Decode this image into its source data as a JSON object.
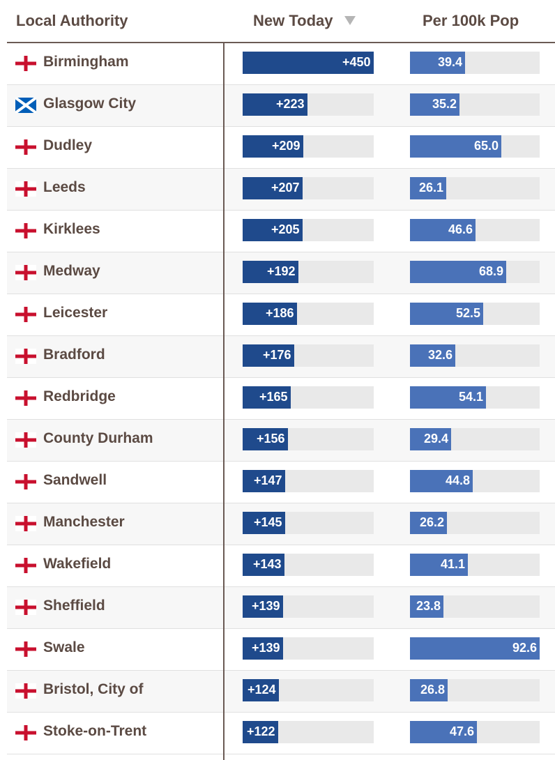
{
  "header": {
    "local_authority": "Local Authority",
    "new_today": "New Today",
    "per_100k": "Per 100k Pop",
    "sort_icon": "sort-descending-triangle"
  },
  "scales": {
    "new_today_max": 450,
    "per_100k_max": 92.6
  },
  "colors": {
    "new_today_bar": "#1f4a8c",
    "per_100k_bar": "#4a72b8",
    "track": "#e9e9e9",
    "england_cross": "#c8102e",
    "scotland_flag": "#005eb8"
  },
  "rows": [
    {
      "name": "Birmingham",
      "flag": "england",
      "new_today": 450,
      "new_today_label": "+450",
      "per_100k": 39.4,
      "per_100k_label": "39.4"
    },
    {
      "name": "Glasgow City",
      "flag": "scotland",
      "new_today": 223,
      "new_today_label": "+223",
      "per_100k": 35.2,
      "per_100k_label": "35.2"
    },
    {
      "name": "Dudley",
      "flag": "england",
      "new_today": 209,
      "new_today_label": "+209",
      "per_100k": 65.0,
      "per_100k_label": "65.0"
    },
    {
      "name": "Leeds",
      "flag": "england",
      "new_today": 207,
      "new_today_label": "+207",
      "per_100k": 26.1,
      "per_100k_label": "26.1"
    },
    {
      "name": "Kirklees",
      "flag": "england",
      "new_today": 205,
      "new_today_label": "+205",
      "per_100k": 46.6,
      "per_100k_label": "46.6"
    },
    {
      "name": "Medway",
      "flag": "england",
      "new_today": 192,
      "new_today_label": "+192",
      "per_100k": 68.9,
      "per_100k_label": "68.9"
    },
    {
      "name": "Leicester",
      "flag": "england",
      "new_today": 186,
      "new_today_label": "+186",
      "per_100k": 52.5,
      "per_100k_label": "52.5"
    },
    {
      "name": "Bradford",
      "flag": "england",
      "new_today": 176,
      "new_today_label": "+176",
      "per_100k": 32.6,
      "per_100k_label": "32.6"
    },
    {
      "name": "Redbridge",
      "flag": "england",
      "new_today": 165,
      "new_today_label": "+165",
      "per_100k": 54.1,
      "per_100k_label": "54.1"
    },
    {
      "name": "County Durham",
      "flag": "england",
      "new_today": 156,
      "new_today_label": "+156",
      "per_100k": 29.4,
      "per_100k_label": "29.4"
    },
    {
      "name": "Sandwell",
      "flag": "england",
      "new_today": 147,
      "new_today_label": "+147",
      "per_100k": 44.8,
      "per_100k_label": "44.8"
    },
    {
      "name": "Manchester",
      "flag": "england",
      "new_today": 145,
      "new_today_label": "+145",
      "per_100k": 26.2,
      "per_100k_label": "26.2"
    },
    {
      "name": "Wakefield",
      "flag": "england",
      "new_today": 143,
      "new_today_label": "+143",
      "per_100k": 41.1,
      "per_100k_label": "41.1"
    },
    {
      "name": "Sheffield",
      "flag": "england",
      "new_today": 139,
      "new_today_label": "+139",
      "per_100k": 23.8,
      "per_100k_label": "23.8"
    },
    {
      "name": "Swale",
      "flag": "england",
      "new_today": 139,
      "new_today_label": "+139",
      "per_100k": 92.6,
      "per_100k_label": "92.6"
    },
    {
      "name": "Bristol, City of",
      "flag": "england",
      "new_today": 124,
      "new_today_label": "+124",
      "per_100k": 26.8,
      "per_100k_label": "26.8"
    },
    {
      "name": "Stoke-on-Trent",
      "flag": "england",
      "new_today": 122,
      "new_today_label": "+122",
      "per_100k": 47.6,
      "per_100k_label": "47.6"
    }
  ]
}
